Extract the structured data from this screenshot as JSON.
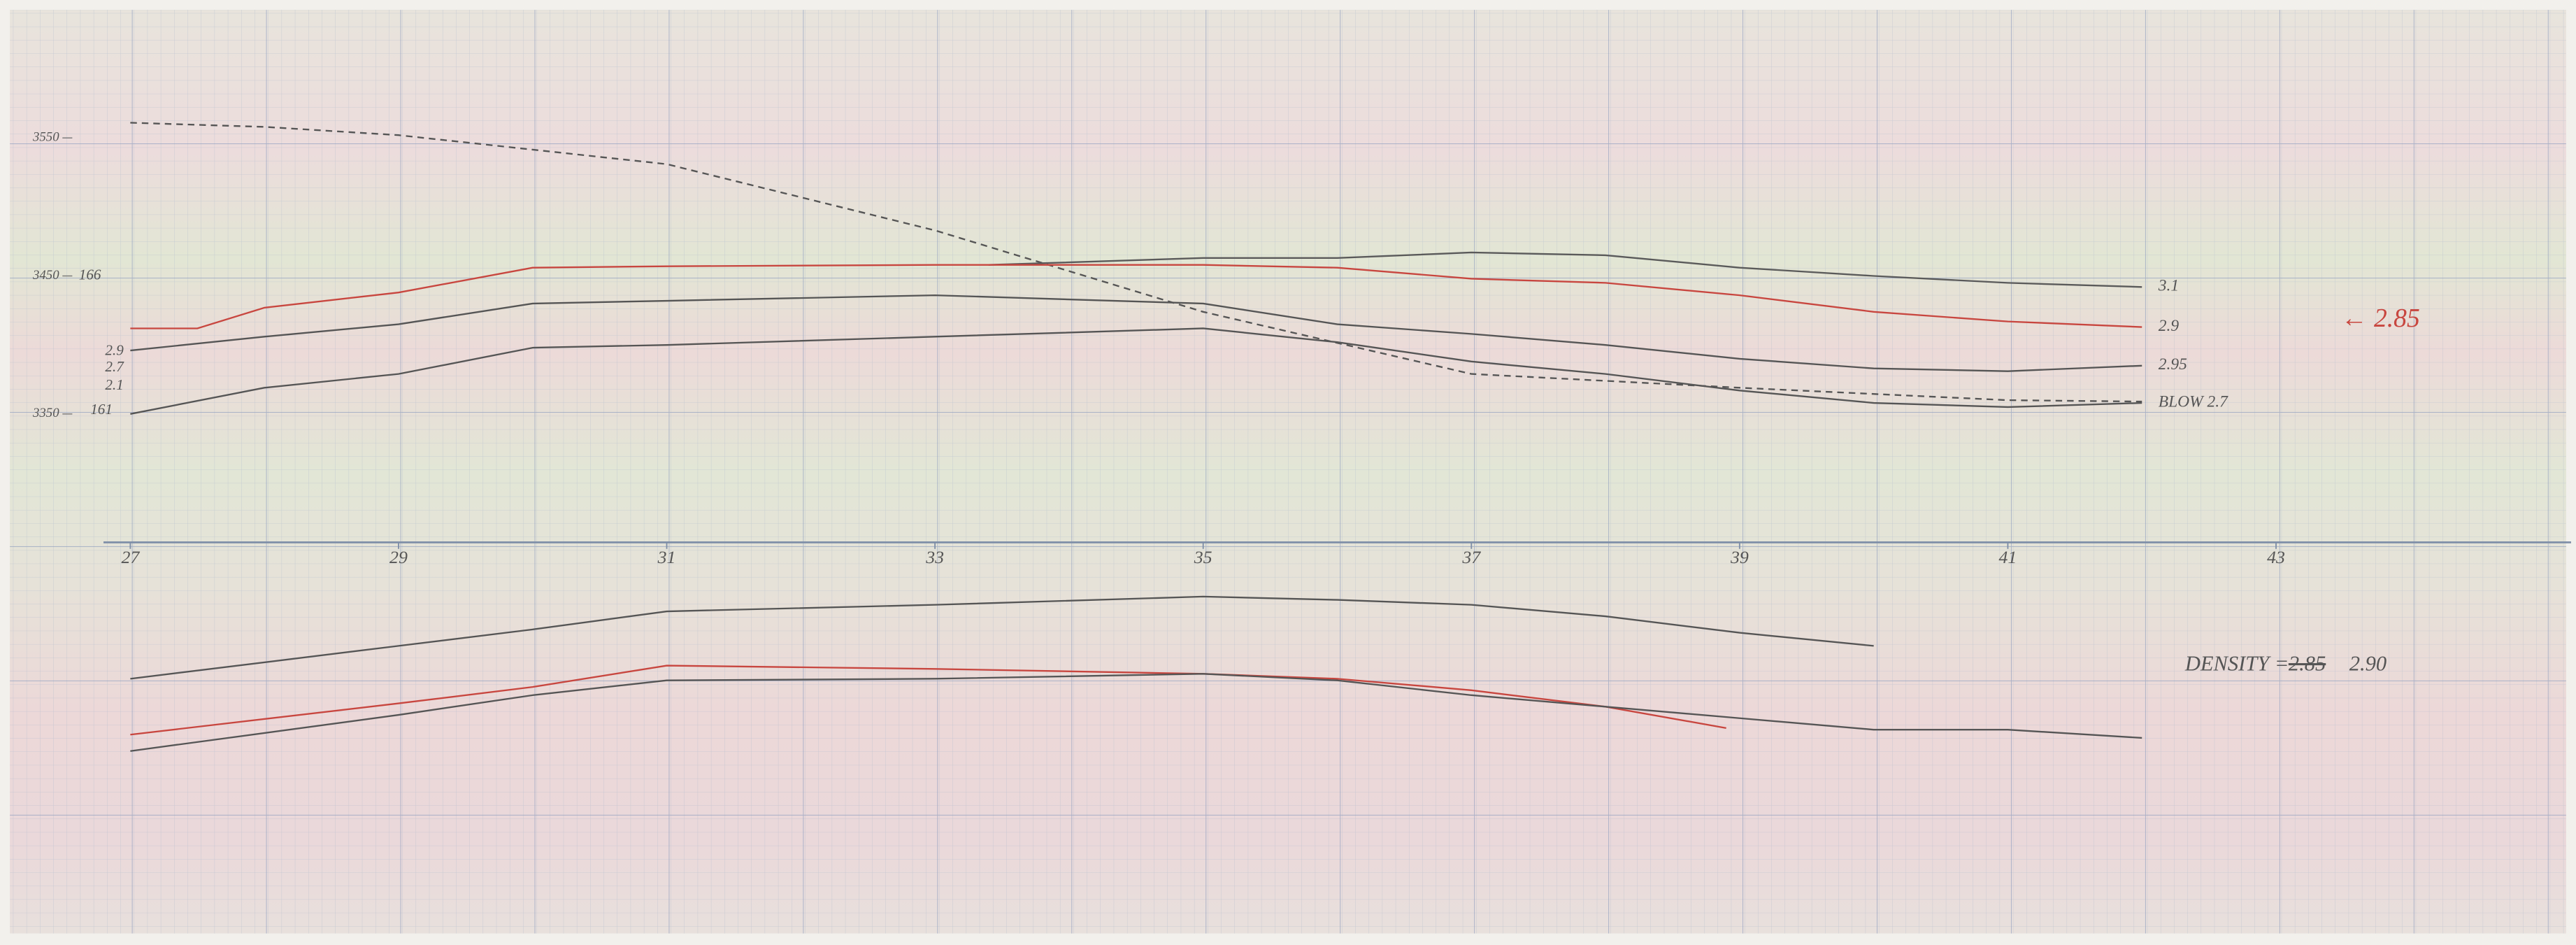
{
  "chart_data": [
    {
      "type": "line",
      "xlim": [
        26.8,
        45.2
      ],
      "ylim": [
        3257,
        3638
      ],
      "yticks": [
        3350,
        3450,
        3550
      ],
      "annotations": [
        "166",
        "161",
        "2.9",
        "2.7",
        "2.1",
        "← 2.85"
      ],
      "series": [
        {
          "color": "#555555",
          "dashed": true,
          "x": [
            27,
            28,
            29,
            31,
            33,
            35,
            37,
            39,
            41,
            42
          ],
          "values": [
            3561,
            3558,
            3552,
            3531,
            3483,
            3424,
            3379,
            3369,
            3360,
            3359
          ]
        },
        {
          "name": "3.1",
          "color": "#5a5a5a",
          "x": [
            33.4,
            35,
            36,
            37,
            38,
            39,
            40,
            41,
            42
          ],
          "values": [
            3458,
            3463,
            3463,
            3467,
            3465,
            3456,
            3450,
            3445,
            3442
          ]
        },
        {
          "name": "2.9",
          "color": "#c8463f",
          "x": [
            27,
            27.5,
            28,
            29,
            30,
            31,
            33,
            35,
            36,
            37,
            38,
            39,
            40,
            41,
            42
          ],
          "values": [
            3412,
            3412,
            3427,
            3438,
            3456,
            3457,
            3458,
            3458,
            3456,
            3448,
            3445,
            3436,
            3424,
            3417,
            3413
          ]
        },
        {
          "name": "2.95",
          "color": "#555555",
          "x": [
            27,
            28,
            29,
            30,
            31,
            33,
            35,
            36,
            37,
            38,
            39,
            40,
            41,
            42
          ],
          "values": [
            3396,
            3406,
            3415,
            3430,
            3432,
            3436,
            3430,
            3415,
            3408,
            3400,
            3390,
            3383,
            3381,
            3385
          ]
        },
        {
          "name": "BLOW 2.7",
          "color": "#555555",
          "x": [
            27,
            28,
            29,
            30,
            31,
            33,
            35,
            36,
            37,
            38,
            39,
            40,
            41,
            42
          ],
          "values": [
            3350,
            3369,
            3379,
            3398,
            3400,
            3406,
            3412,
            3402,
            3388,
            3379,
            3367,
            3358,
            3355,
            3358
          ]
        }
      ]
    },
    {
      "type": "line",
      "xlim": [
        26.8,
        45.2
      ],
      "ylim": [
        -95,
        140
      ],
      "xticks": [
        27,
        29,
        31,
        33,
        35,
        37,
        39,
        41,
        43
      ],
      "annotations": [
        "DENSITY =",
        "2.85",
        "2.90"
      ],
      "series": [
        {
          "color": "#555555",
          "x": [
            27,
            29,
            30,
            31,
            33,
            35,
            36,
            37,
            38,
            39,
            40
          ],
          "values": [
            57,
            77,
            87,
            98,
            102,
            107,
            105,
            102,
            95,
            85,
            77
          ]
        },
        {
          "color": "#c8463f",
          "x": [
            27,
            29,
            30,
            31,
            33,
            35,
            36,
            37,
            38,
            38.9
          ],
          "values": [
            23,
            42,
            52,
            65,
            63,
            60,
            57,
            50,
            40,
            27
          ]
        },
        {
          "color": "#555555",
          "x": [
            27,
            29,
            30,
            31,
            33,
            35,
            36,
            37,
            38,
            39,
            40,
            41,
            42
          ],
          "values": [
            13,
            35,
            47,
            56,
            57,
            60,
            56,
            47,
            40,
            33,
            26,
            26,
            21
          ]
        }
      ]
    }
  ]
}
